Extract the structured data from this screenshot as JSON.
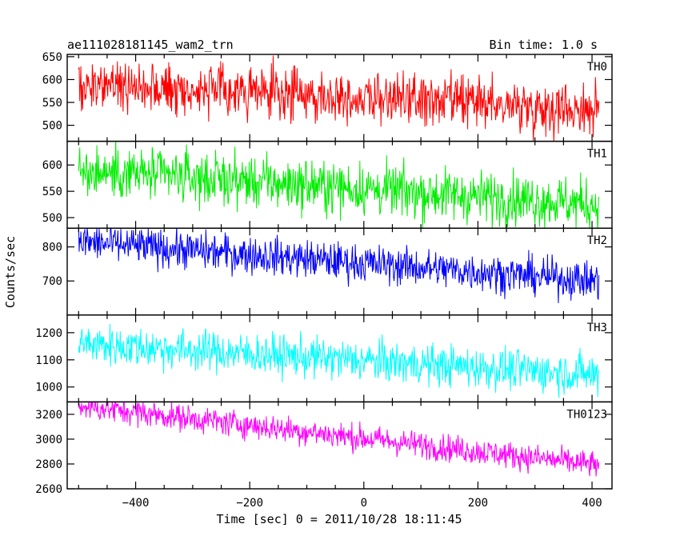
{
  "chart_data": {
    "type": "line",
    "title_left": "ae111028181145_wam2_trn",
    "title_right": "Bin time: 1.0 s",
    "xlabel": "Time [sec] 0 = 2011/10/28 18:11:45",
    "ylabel": "Counts/sec",
    "xlim": [
      -520,
      435
    ],
    "xticks": [
      -400,
      -200,
      0,
      200,
      400
    ],
    "x_start": -500,
    "x_end": 412,
    "x_step": 1,
    "panels": [
      {
        "name": "TH0",
        "color": "#ff0000",
        "ylim": [
          465,
          655
        ],
        "yticks": [
          500,
          550,
          600,
          650
        ],
        "start": 590,
        "end": 535,
        "noise": 28
      },
      {
        "name": "TH1",
        "color": "#00ee00",
        "ylim": [
          480,
          645
        ],
        "yticks": [
          500,
          550,
          600
        ],
        "start": 590,
        "end": 525,
        "noise": 25
      },
      {
        "name": "TH2",
        "color": "#0000ff",
        "ylim": [
          600,
          855
        ],
        "yticks": [
          700,
          800
        ],
        "start": 815,
        "end": 700,
        "noise": 28
      },
      {
        "name": "TH3",
        "color": "#00ffff",
        "ylim": [
          945,
          1265
        ],
        "yticks": [
          1000,
          1100,
          1200
        ],
        "start": 1160,
        "end": 1045,
        "noise": 38
      },
      {
        "name": "TH0123",
        "color": "#ff00ff",
        "ylim": [
          2600,
          3300
        ],
        "yticks": [
          2600,
          2800,
          3000,
          3200
        ],
        "start": 3270,
        "end": 2790,
        "noise": 55
      }
    ]
  }
}
